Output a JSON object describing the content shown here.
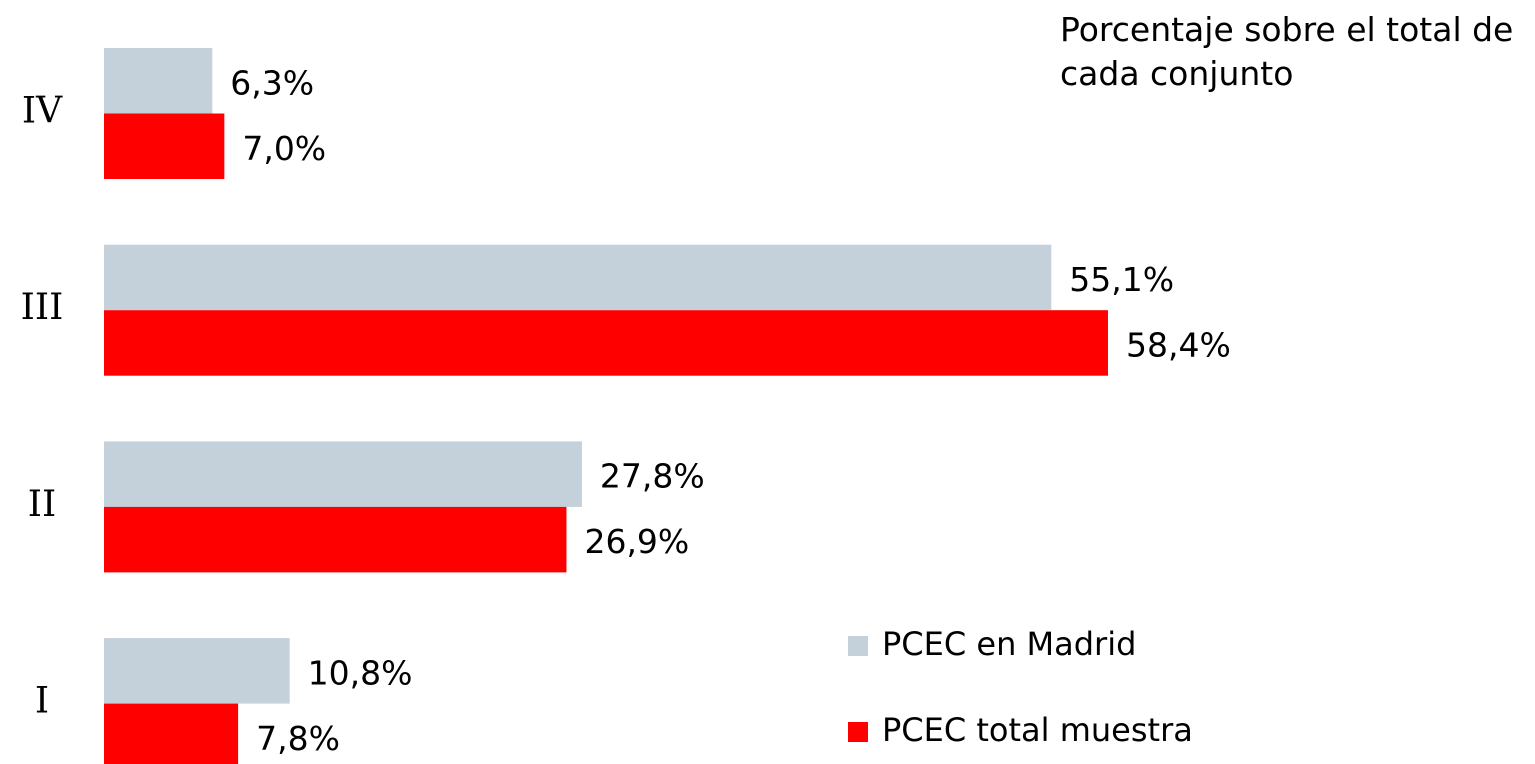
{
  "chart_data": {
    "type": "hbar",
    "subtitle": "Porcentaje sobre el total de cada conjunto",
    "categories": [
      "IV",
      "III",
      "II",
      "I"
    ],
    "series": [
      {
        "name": "PCEC en Madrid",
        "color": "#c4d0da",
        "values": [
          6.3,
          55.1,
          27.8,
          10.8
        ],
        "value_labels": [
          "6,3%",
          "55,1%",
          "27,8%",
          "10,8%"
        ]
      },
      {
        "name": "PCEC total muestra",
        "color": "#ff0000",
        "values": [
          7.0,
          58.4,
          26.9,
          7.8
        ],
        "value_labels": [
          "7,0%",
          "58,4%",
          "26,9%",
          "7,8%"
        ]
      }
    ]
  }
}
